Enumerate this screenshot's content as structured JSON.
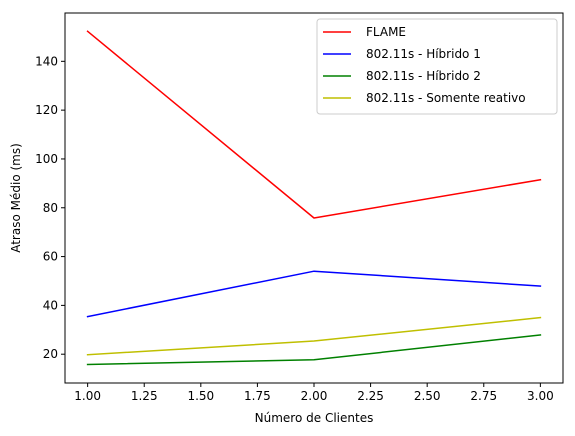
{
  "chart_data": {
    "type": "line",
    "title": "",
    "xlabel": "Número de Clientes",
    "ylabel": "Atraso Médio (ms)",
    "x": [
      1.0,
      2.0,
      3.0
    ],
    "xlim": [
      0.9,
      3.1
    ],
    "ylim": [
      8.2,
      159.8
    ],
    "xticks": [
      1.0,
      1.25,
      1.5,
      1.75,
      2.0,
      2.25,
      2.5,
      2.75,
      3.0
    ],
    "xtick_labels": [
      "1.00",
      "1.25",
      "1.50",
      "1.75",
      "2.00",
      "2.25",
      "2.50",
      "2.75",
      "3.00"
    ],
    "yticks": [
      20,
      40,
      60,
      80,
      100,
      120,
      140
    ],
    "ytick_labels": [
      "20",
      "40",
      "60",
      "80",
      "100",
      "120",
      "140"
    ],
    "grid": false,
    "legend_position": "top-right",
    "series": [
      {
        "name": "FLAME",
        "color": "#ff0000",
        "values": [
          152.3,
          75.8,
          91.5
        ]
      },
      {
        "name": "802.11s - Híbrido 1",
        "color": "#0000ff",
        "values": [
          35.4,
          54.0,
          47.9
        ]
      },
      {
        "name": "802.11s - Híbrido 2",
        "color": "#008000",
        "values": [
          15.8,
          17.7,
          27.9
        ]
      },
      {
        "name": "802.11s - Somente reativo",
        "color": "#bfbf00",
        "values": [
          19.8,
          25.4,
          35.0
        ]
      }
    ]
  }
}
